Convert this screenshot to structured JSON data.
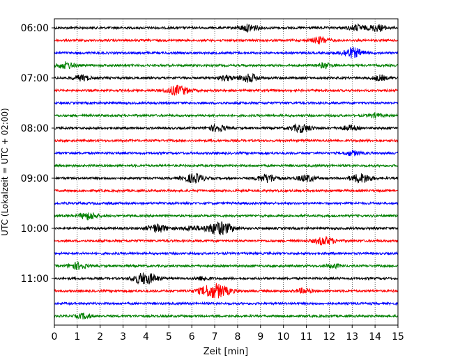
{
  "chart_data": {
    "type": "line",
    "chart_style": "helicorder",
    "xlabel": "Zeit  [min]",
    "ylabel": "UTC (Lokalzeit = UTC + 02:00)",
    "xlim": [
      0,
      15
    ],
    "x_ticks": [
      0,
      1,
      2,
      3,
      4,
      5,
      6,
      7,
      8,
      9,
      10,
      11,
      12,
      13,
      14,
      15
    ],
    "y_ticks": [
      {
        "row": 0,
        "label": "06:00"
      },
      {
        "row": 4,
        "label": "07:00"
      },
      {
        "row": 8,
        "label": "08:00"
      },
      {
        "row": 12,
        "label": "09:00"
      },
      {
        "row": 16,
        "label": "10:00"
      },
      {
        "row": 20,
        "label": "11:00"
      }
    ],
    "trace_colors": [
      "#000000",
      "#ff0000",
      "#0000ff",
      "#008000"
    ],
    "grid": "vertical dotted",
    "traces": [
      {
        "start": "06:00",
        "color": "#000000",
        "events": [
          [
            8.5,
            0.9
          ],
          [
            13.2,
            0.7
          ],
          [
            14.1,
            0.8
          ]
        ]
      },
      {
        "start": "06:15",
        "color": "#ff0000",
        "events": [
          [
            11.6,
            0.8
          ]
        ]
      },
      {
        "start": "06:30",
        "color": "#0000ff",
        "events": [
          [
            13.0,
            1.2
          ]
        ]
      },
      {
        "start": "06:45",
        "color": "#008000",
        "events": [
          [
            0.5,
            0.8
          ],
          [
            11.8,
            0.6
          ]
        ]
      },
      {
        "start": "07:00",
        "color": "#000000",
        "events": [
          [
            1.2,
            0.7
          ],
          [
            7.5,
            0.6
          ],
          [
            8.5,
            1.0
          ],
          [
            14.2,
            0.6
          ]
        ]
      },
      {
        "start": "07:15",
        "color": "#ff0000",
        "events": [
          [
            5.4,
            1.2
          ]
        ]
      },
      {
        "start": "07:30",
        "color": "#0000ff",
        "events": []
      },
      {
        "start": "07:45",
        "color": "#008000",
        "events": [
          [
            14.0,
            0.5
          ]
        ]
      },
      {
        "start": "08:00",
        "color": "#000000",
        "events": [
          [
            7.1,
            0.8
          ],
          [
            10.8,
            1.0
          ],
          [
            12.9,
            0.6
          ]
        ]
      },
      {
        "start": "08:15",
        "color": "#ff0000",
        "events": []
      },
      {
        "start": "08:30",
        "color": "#0000ff",
        "events": [
          [
            13.0,
            0.6
          ]
        ]
      },
      {
        "start": "08:45",
        "color": "#008000",
        "events": []
      },
      {
        "start": "09:00",
        "color": "#000000",
        "events": [
          [
            6.1,
            1.1
          ],
          [
            9.3,
            1.0
          ],
          [
            11.0,
            0.8
          ],
          [
            13.4,
            1.1
          ]
        ]
      },
      {
        "start": "09:15",
        "color": "#ff0000",
        "events": []
      },
      {
        "start": "09:30",
        "color": "#0000ff",
        "events": []
      },
      {
        "start": "09:45",
        "color": "#008000",
        "events": [
          [
            1.5,
            0.9
          ]
        ]
      },
      {
        "start": "10:00",
        "color": "#000000",
        "events": [
          [
            4.5,
            1.0
          ],
          [
            6.0,
            0.6
          ],
          [
            7.2,
            1.6
          ]
        ]
      },
      {
        "start": "10:15",
        "color": "#ff0000",
        "events": [
          [
            11.8,
            1.0
          ]
        ]
      },
      {
        "start": "10:30",
        "color": "#0000ff",
        "events": []
      },
      {
        "start": "10:45",
        "color": "#008000",
        "events": [
          [
            1.0,
            0.8
          ],
          [
            12.2,
            0.5
          ]
        ]
      },
      {
        "start": "11:00",
        "color": "#000000",
        "events": [
          [
            3.7,
            0.7
          ],
          [
            4.1,
            1.1
          ],
          [
            6.5,
            0.5
          ]
        ]
      },
      {
        "start": "11:15",
        "color": "#ff0000",
        "events": [
          [
            7.0,
            1.8
          ],
          [
            10.9,
            0.6
          ]
        ]
      },
      {
        "start": "11:30",
        "color": "#0000ff",
        "events": []
      },
      {
        "start": "11:45",
        "color": "#008000",
        "events": [
          [
            1.3,
            0.6
          ]
        ]
      }
    ]
  }
}
